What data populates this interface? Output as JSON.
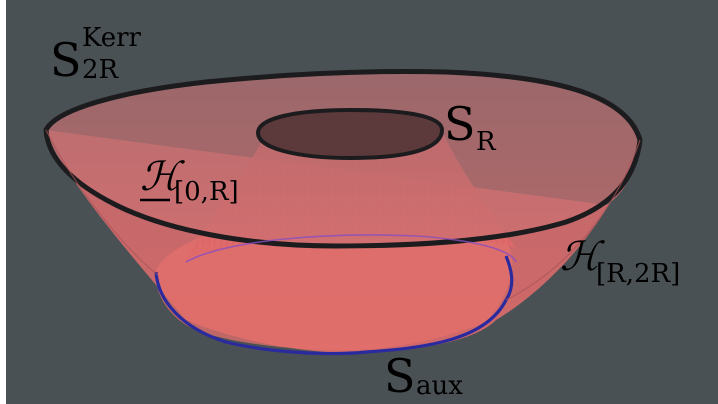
{
  "labels": {
    "outer_sphere": {
      "main": "S",
      "superscript": "Kerr",
      "subscript": "2R"
    },
    "inner_sphere": {
      "main": "S",
      "subscript": "R"
    },
    "inner_horizon": {
      "main": "ℋ",
      "subscript": "[0,R]"
    },
    "outer_horizon": {
      "main": "ℋ",
      "subscript": "[R,2R]"
    },
    "aux_sphere": {
      "main": "S",
      "subscript": "aux"
    }
  },
  "colors": {
    "background": "#4a5154",
    "surface_fill": "#d96a6a",
    "surface_fill_dark": "#b84a4f",
    "inner_hole": "#5c3a3c",
    "rim_stroke": "#1c1c1f",
    "aux_curve": "#2a2a9e",
    "inner_edge_purple": "#8a4fc0"
  }
}
